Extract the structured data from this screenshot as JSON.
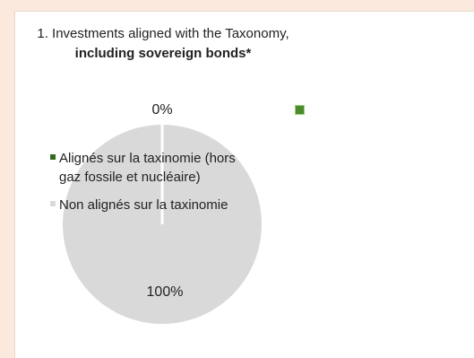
{
  "chart_data": {
    "type": "pie",
    "title_line1": "1. Investments aligned with the Taxonomy,",
    "title_line2": "including sovereign bonds*",
    "categories": [
      "Alignés sur la taxinomie (hors gaz fossile et nucléaire)",
      "Non alignés sur la taxinomie"
    ],
    "values": [
      0,
      100
    ],
    "data_labels": [
      "0%",
      "100%"
    ],
    "colors": [
      "#2e6b1f",
      "#d9d9d9"
    ],
    "legend_position": "left-overlay"
  }
}
